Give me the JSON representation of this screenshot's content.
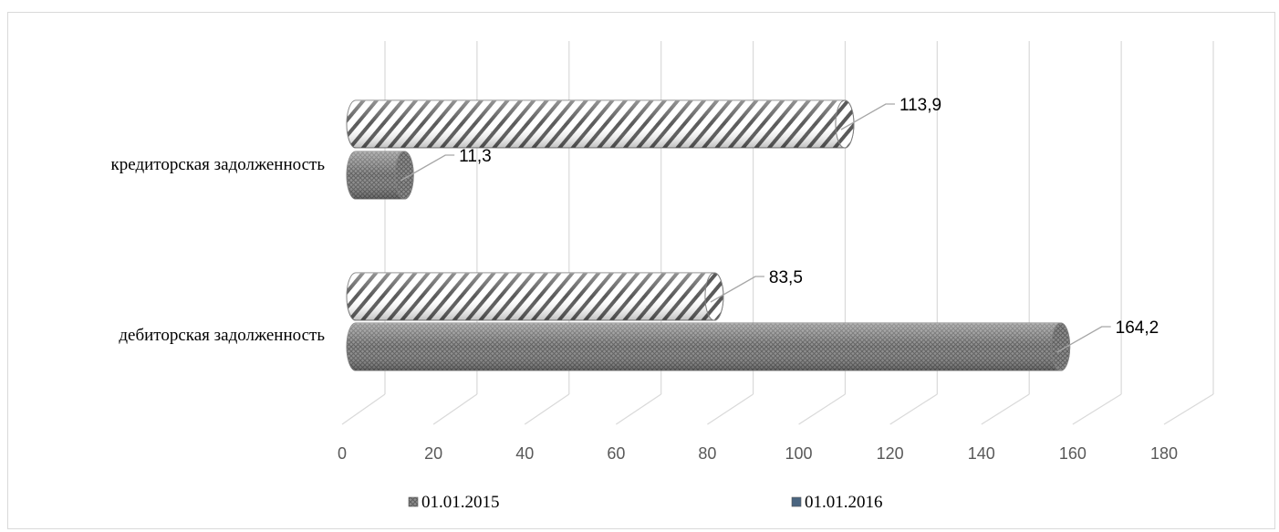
{
  "chart_data": {
    "type": "bar",
    "orientation": "horizontal",
    "categories": [
      "кредиторская задолженность",
      "дебиторская задолженность"
    ],
    "series": [
      {
        "name": "01.01.2015",
        "values": [
          11.3,
          164.2
        ],
        "pattern": "crosshatch",
        "color": "#808080"
      },
      {
        "name": "01.01.2016",
        "values": [
          113.9,
          83.5
        ],
        "pattern": "diagonal-stripes",
        "color": "#ffffff"
      }
    ],
    "data_labels": {
      "values": [
        [
          "11,3",
          "164,2"
        ],
        [
          "113,9",
          "83,5"
        ]
      ]
    },
    "x_ticks": [
      "0",
      "20",
      "40",
      "60",
      "80",
      "100",
      "120",
      "140",
      "160",
      "180"
    ],
    "xlim": [
      0,
      180
    ],
    "grid": true,
    "legend": "bottom",
    "title": "",
    "xlabel": "",
    "ylabel": ""
  }
}
